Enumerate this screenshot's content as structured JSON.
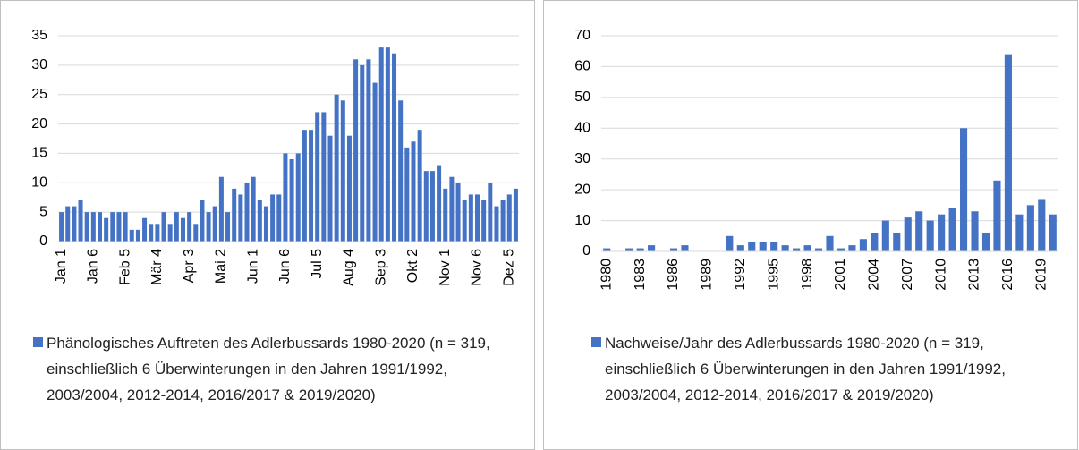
{
  "chart_data": [
    {
      "type": "bar",
      "categories": [
        "Jan 1",
        null,
        null,
        null,
        null,
        "Jan 6",
        null,
        null,
        null,
        null,
        "Feb 5",
        null,
        null,
        null,
        null,
        "Mär 4",
        null,
        null,
        null,
        null,
        "Apr 3",
        null,
        null,
        null,
        null,
        "Mai 2",
        null,
        null,
        null,
        null,
        "Jun 1",
        null,
        null,
        null,
        null,
        "Jun 6",
        null,
        null,
        null,
        null,
        "Jul 5",
        null,
        null,
        null,
        null,
        "Aug 4",
        null,
        null,
        null,
        null,
        "Sep 3",
        null,
        null,
        null,
        null,
        "Okt 2",
        null,
        null,
        null,
        null,
        "Nov 1",
        null,
        null,
        null,
        null,
        "Nov 6",
        null,
        null,
        null,
        null,
        "Dez 5",
        null
      ],
      "series": [
        {
          "name": "Phänologisches Auftreten des Adlerbussards 1980-2020 (n = 319, einschließlich 6 Überwinterungen in den Jahren 1991/1992, 2003/2004, 2012-2014, 2016/2017 & 2019/2020)",
          "color": "#4472c4",
          "values": [
            5,
            6,
            6,
            7,
            5,
            5,
            5,
            4,
            5,
            5,
            5,
            2,
            2,
            4,
            3,
            3,
            5,
            3,
            5,
            4,
            5,
            3,
            7,
            5,
            6,
            11,
            5,
            9,
            8,
            10,
            11,
            7,
            6,
            8,
            8,
            15,
            14,
            15,
            19,
            19,
            22,
            22,
            18,
            25,
            24,
            18,
            31,
            30,
            31,
            27,
            33,
            33,
            32,
            24,
            16,
            17,
            19,
            12,
            12,
            13,
            9,
            11,
            10,
            7,
            8,
            8,
            7,
            10,
            6,
            7,
            8,
            9
          ]
        }
      ],
      "ylim": [
        0,
        35
      ],
      "yticks": [
        0,
        5,
        10,
        15,
        20,
        25,
        30,
        35
      ],
      "grid": true
    },
    {
      "type": "bar",
      "categories": [
        "1980",
        null,
        null,
        "1983",
        null,
        null,
        "1986",
        null,
        null,
        "1989",
        null,
        null,
        "1992",
        null,
        null,
        "1995",
        null,
        null,
        "1998",
        null,
        null,
        "2001",
        null,
        null,
        "2004",
        null,
        null,
        "2007",
        null,
        null,
        "2010",
        null,
        null,
        "2013",
        null,
        null,
        "2016",
        null,
        null,
        "2019",
        null
      ],
      "series": [
        {
          "name": "Nachweise/Jahr des Adlerbussards 1980-2020 (n = 319, einschließlich 6 Überwinterungen in den Jahren 1991/1992, 2003/2004, 2012-2014, 2016/2017 & 2019/2020)",
          "color": "#4472c4",
          "values": [
            1,
            0,
            1,
            1,
            2,
            0,
            1,
            2,
            0,
            0,
            0,
            5,
            2,
            3,
            3,
            3,
            2,
            1,
            2,
            1,
            5,
            1,
            2,
            4,
            6,
            10,
            6,
            11,
            13,
            10,
            12,
            14,
            40,
            13,
            6,
            23,
            64,
            12,
            15,
            17,
            12
          ]
        }
      ],
      "ylim": [
        0,
        70
      ],
      "yticks": [
        0,
        10,
        20,
        30,
        40,
        50,
        60,
        70
      ],
      "grid": true
    }
  ]
}
